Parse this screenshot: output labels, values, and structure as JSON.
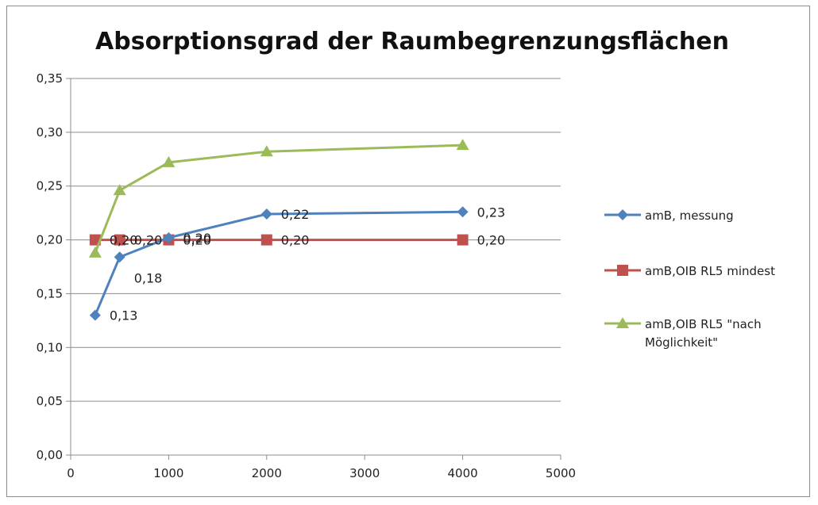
{
  "chart_data": {
    "type": "line",
    "title": "Absorptionsgrad der Raumbegrenzungsflächen",
    "xlabel": "",
    "ylabel": "",
    "xlim": [
      0,
      5000
    ],
    "ylim": [
      0,
      0.35
    ],
    "x_ticks": [
      "0",
      "1000",
      "2000",
      "3000",
      "4000",
      "5000"
    ],
    "y_ticks": [
      "0,00",
      "0,05",
      "0,10",
      "0,15",
      "0,20",
      "0,25",
      "0,30",
      "0,35"
    ],
    "grid": "horizontal",
    "legend_position": "right",
    "series": [
      {
        "name": "amB, messung",
        "color": "#4f81bd",
        "marker": "diamond",
        "x": [
          250,
          500,
          1000,
          2000,
          4000
        ],
        "values": [
          0.13,
          0.184,
          0.202,
          0.224,
          0.226
        ],
        "labels": [
          "0,13",
          "0,18",
          "0,20",
          "0,22",
          "0,23"
        ]
      },
      {
        "name": "amB,OIB RL5 mindest",
        "color": "#c0504d",
        "marker": "square",
        "x": [
          250,
          500,
          1000,
          2000,
          4000
        ],
        "values": [
          0.2,
          0.2,
          0.2,
          0.2,
          0.2
        ],
        "labels": [
          "0,20",
          "0,20",
          "0,20",
          "0,20",
          "0,20"
        ]
      },
      {
        "name": "amB,OIB RL5 \"nach Möglichkeit\"",
        "legend_lines": [
          "amB,OIB RL5 \"nach",
          "Möglichkeit\""
        ],
        "color": "#9bbb59",
        "marker": "triangle",
        "x": [
          250,
          500,
          1000,
          2000,
          4000
        ],
        "values": [
          0.188,
          0.246,
          0.272,
          0.282,
          0.288
        ]
      }
    ]
  }
}
